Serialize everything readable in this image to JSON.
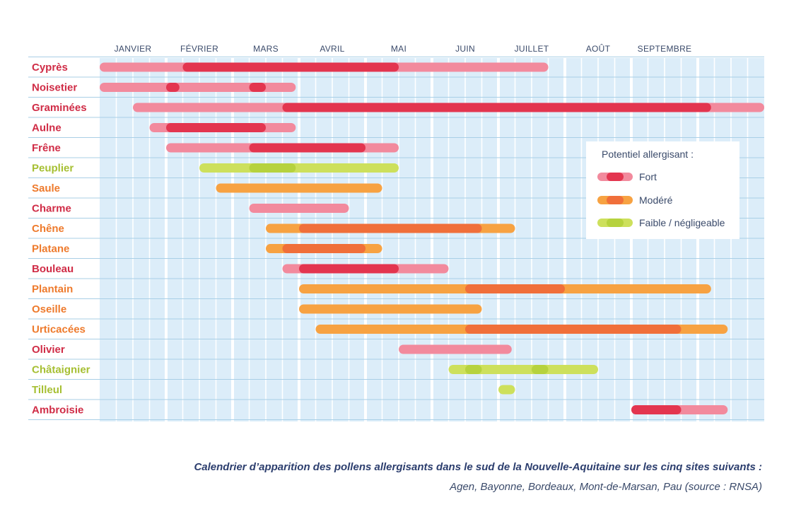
{
  "chart_data": {
    "type": "gantt",
    "months": [
      "JANVIER",
      "FÉVRIER",
      "MARS",
      "AVRIL",
      "MAI",
      "JUIN",
      "JUILLET",
      "AOÛT",
      "SEPTEMBRE"
    ],
    "x_unit": "mois (quinzaines de janvier à septembre)",
    "levels": {
      "fort": {
        "light": "#f28a9d",
        "strong": "#e3354f",
        "label_color": "#d02c46"
      },
      "modere": {
        "light": "#f7a242",
        "strong": "#f06f3a",
        "label_color": "#ee7a2c"
      },
      "faible": {
        "light": "#cde05c",
        "strong": "#b6d23e",
        "label_color": "#a6bf32"
      }
    },
    "species": [
      {
        "name": "Cyprès",
        "level": "fort",
        "start": 0.0,
        "end": 6.75,
        "peaks": [
          [
            1.25,
            4.5
          ]
        ]
      },
      {
        "name": "Noisetier",
        "level": "fort",
        "start": 0.0,
        "end": 2.95,
        "peaks": [
          [
            1.0,
            1.2
          ],
          [
            2.25,
            2.5
          ]
        ]
      },
      {
        "name": "Graminées",
        "level": "fort",
        "start": 0.5,
        "end": 10.0,
        "peaks": [
          [
            2.75,
            9.2
          ]
        ]
      },
      {
        "name": "Aulne",
        "level": "fort",
        "start": 0.75,
        "end": 2.95,
        "peaks": [
          [
            1.0,
            2.5
          ]
        ]
      },
      {
        "name": "Frêne",
        "level": "fort",
        "start": 1.0,
        "end": 4.5,
        "peaks": [
          [
            2.25,
            4.0
          ]
        ]
      },
      {
        "name": "Peuplier",
        "level": "faible",
        "start": 1.5,
        "end": 4.5,
        "peaks": [
          [
            2.25,
            2.95
          ]
        ]
      },
      {
        "name": "Saule",
        "level": "modere",
        "start": 1.75,
        "end": 4.25,
        "peaks": []
      },
      {
        "name": "Charme",
        "level": "fort",
        "start": 2.25,
        "end": 3.75,
        "peaks": []
      },
      {
        "name": "Chêne",
        "level": "modere",
        "start": 2.5,
        "end": 6.25,
        "peaks": [
          [
            3.0,
            5.75
          ]
        ]
      },
      {
        "name": "Platane",
        "level": "modere",
        "start": 2.5,
        "end": 4.25,
        "peaks": [
          [
            2.75,
            4.0
          ]
        ]
      },
      {
        "name": "Bouleau",
        "level": "fort",
        "start": 2.75,
        "end": 5.25,
        "peaks": [
          [
            3.0,
            4.5
          ]
        ]
      },
      {
        "name": "Plantain",
        "level": "modere",
        "start": 3.0,
        "end": 9.2,
        "peaks": [
          [
            5.5,
            7.0
          ]
        ]
      },
      {
        "name": "Oseille",
        "level": "modere",
        "start": 3.0,
        "end": 5.75,
        "peaks": []
      },
      {
        "name": "Urticacées",
        "level": "modere",
        "start": 3.25,
        "end": 9.45,
        "peaks": [
          [
            5.5,
            8.75
          ]
        ]
      },
      {
        "name": "Olivier",
        "level": "fort",
        "start": 4.5,
        "end": 6.2,
        "peaks": []
      },
      {
        "name": "Châtaignier",
        "level": "faible",
        "start": 5.25,
        "end": 7.5,
        "peaks": [
          [
            5.5,
            5.75
          ],
          [
            6.5,
            6.75
          ]
        ]
      },
      {
        "name": "Tilleul",
        "level": "faible",
        "start": 6.0,
        "end": 6.25,
        "peaks": []
      },
      {
        "name": "Ambroisie",
        "level": "fort",
        "start": 8.0,
        "end": 9.45,
        "peaks": [
          [
            8.0,
            8.75
          ]
        ]
      }
    ]
  },
  "legend": {
    "title": "Potentiel allergisant :",
    "items": [
      {
        "label": "Fort",
        "level": "fort"
      },
      {
        "label": "Modéré",
        "level": "modere"
      },
      {
        "label": "Faible / négligeable",
        "level": "faible"
      }
    ]
  },
  "caption": {
    "main": "Calendrier d’apparition des pollens allergisants dans le sud de la Nouvelle-Aquitaine sur les cinq sites suivants :",
    "sub": "Agen, Bayonne, Bordeaux, Mont-de-Marsan, Pau (source : RNSA)"
  }
}
